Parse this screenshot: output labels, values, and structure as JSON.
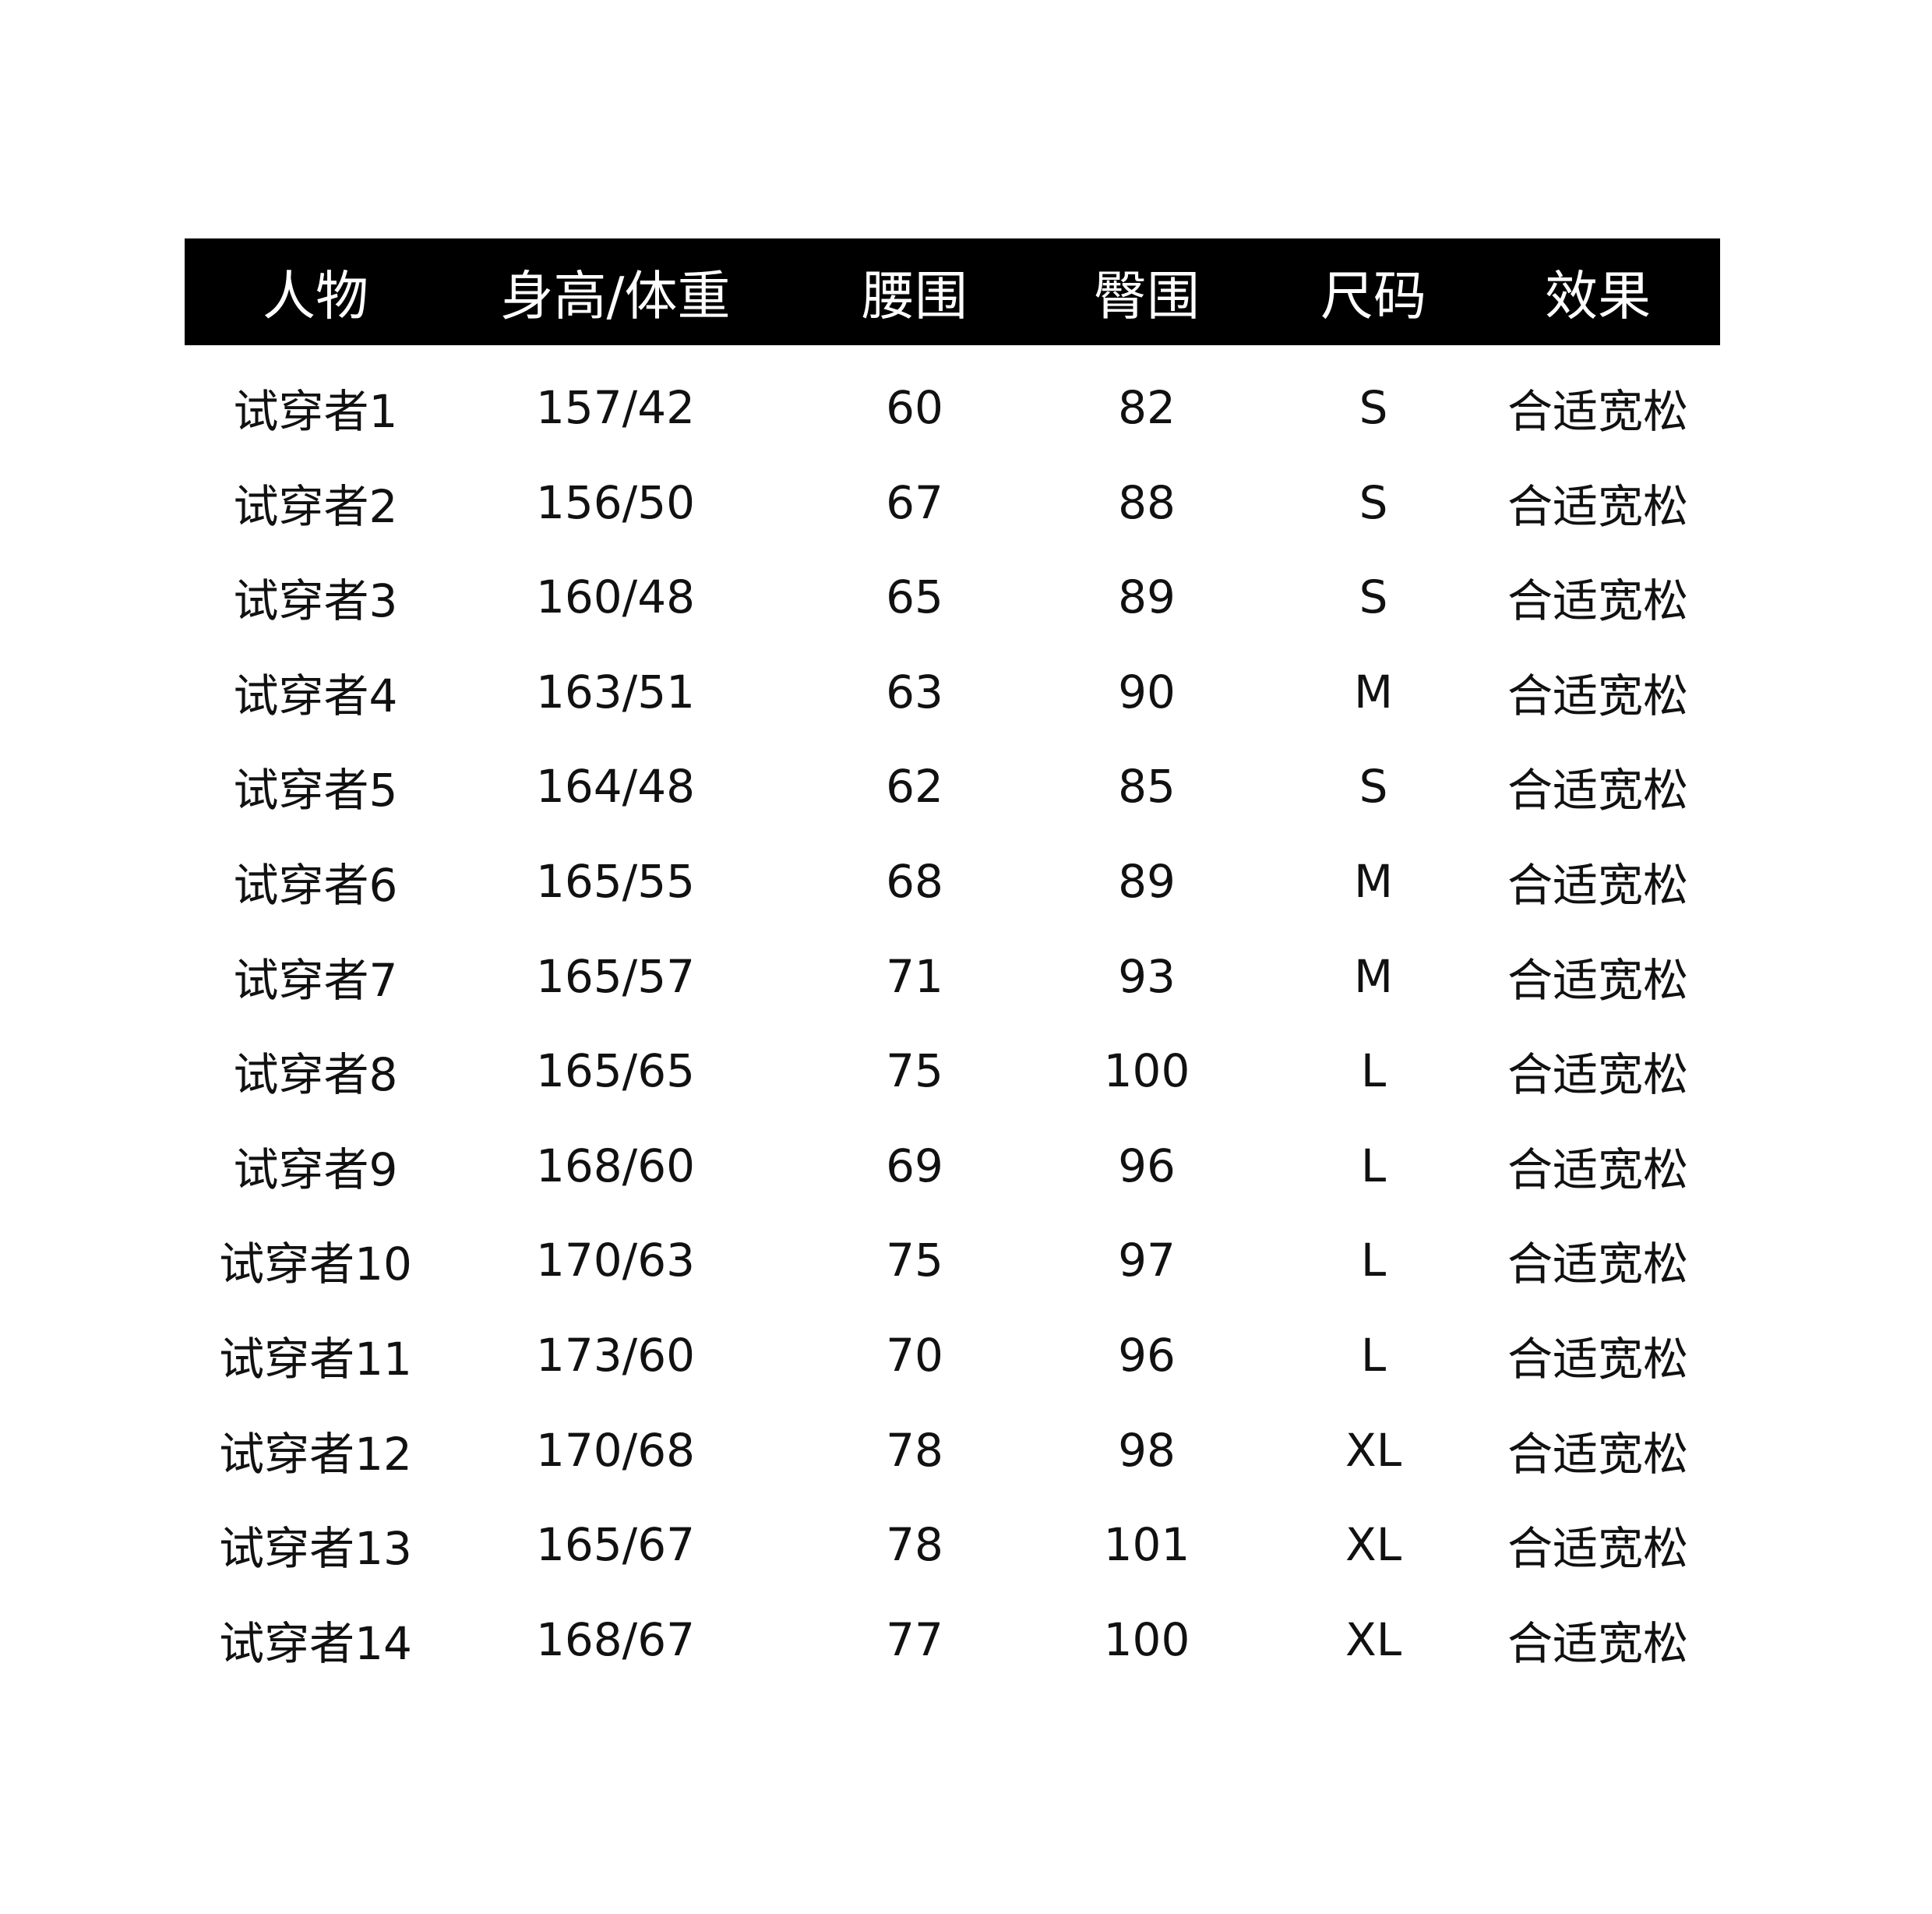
{
  "table": {
    "headers": [
      "人物",
      "身高/体重",
      "腰围",
      "臀围",
      "尺码",
      "效果"
    ],
    "rows": [
      [
        "试穿者1",
        "157/42",
        "60",
        "82",
        "S",
        "合适宽松"
      ],
      [
        "试穿者2",
        "156/50",
        "67",
        "88",
        "S",
        "合适宽松"
      ],
      [
        "试穿者3",
        "160/48",
        "65",
        "89",
        "S",
        "合适宽松"
      ],
      [
        "试穿者4",
        "163/51",
        "63",
        "90",
        "M",
        "合适宽松"
      ],
      [
        "试穿者5",
        "164/48",
        "62",
        "85",
        "S",
        "合适宽松"
      ],
      [
        "试穿者6",
        "165/55",
        "68",
        "89",
        "M",
        "合适宽松"
      ],
      [
        "试穿者7",
        "165/57",
        "71",
        "93",
        "M",
        "合适宽松"
      ],
      [
        "试穿者8",
        "165/65",
        "75",
        "100",
        "L",
        "合适宽松"
      ],
      [
        "试穿者9",
        "168/60",
        "69",
        "96",
        "L",
        "合适宽松"
      ],
      [
        "试穿者10",
        "170/63",
        "75",
        "97",
        "L",
        "合适宽松"
      ],
      [
        "试穿者11",
        "173/60",
        "70",
        "96",
        "L",
        "合适宽松"
      ],
      [
        "试穿者12",
        "170/68",
        "78",
        "98",
        "XL",
        "合适宽松"
      ],
      [
        "试穿者13",
        "165/67",
        "78",
        "101",
        "XL",
        "合适宽松"
      ],
      [
        "试穿者14",
        "168/67",
        "77",
        "100",
        "XL",
        "合适宽松"
      ]
    ]
  },
  "colors": {
    "header_bg": "#000000",
    "header_text": "#ffffff",
    "body_text": "#111111"
  }
}
